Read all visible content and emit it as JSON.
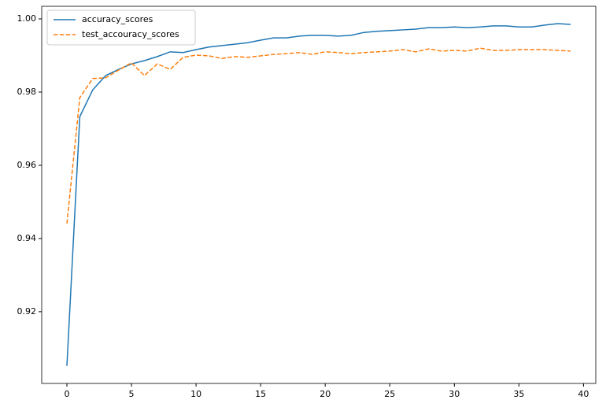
{
  "chart_data": {
    "type": "line",
    "x": [
      0,
      1,
      2,
      3,
      4,
      5,
      6,
      7,
      8,
      9,
      10,
      11,
      12,
      13,
      14,
      15,
      16,
      17,
      18,
      19,
      20,
      21,
      22,
      23,
      24,
      25,
      26,
      27,
      28,
      29,
      30,
      31,
      32,
      33,
      34,
      35,
      36,
      37,
      38,
      39
    ],
    "series": [
      {
        "name": "accuracy_scores",
        "color": "#1f77b4",
        "linestyle": "solid",
        "values": [
          0.9052,
          0.9733,
          0.9806,
          0.9845,
          0.9862,
          0.9877,
          0.9886,
          0.9897,
          0.991,
          0.9908,
          0.9916,
          0.9923,
          0.9927,
          0.9931,
          0.9935,
          0.9942,
          0.9948,
          0.9948,
          0.9953,
          0.9955,
          0.9955,
          0.9953,
          0.9955,
          0.9963,
          0.9966,
          0.9968,
          0.997,
          0.9972,
          0.9976,
          0.9976,
          0.9978,
          0.9976,
          0.9978,
          0.9981,
          0.9981,
          0.9978,
          0.9978,
          0.9983,
          0.9987,
          0.9985
        ]
      },
      {
        "name": "test_accouracy_scores",
        "color": "#ff7f0e",
        "linestyle": "dashed",
        "values": [
          0.9441,
          0.9785,
          0.9837,
          0.9839,
          0.986,
          0.988,
          0.9845,
          0.9877,
          0.9862,
          0.9895,
          0.9901,
          0.9899,
          0.9892,
          0.9897,
          0.9895,
          0.9899,
          0.9903,
          0.9905,
          0.9908,
          0.9903,
          0.991,
          0.9908,
          0.9905,
          0.9908,
          0.991,
          0.9912,
          0.9916,
          0.991,
          0.9918,
          0.9912,
          0.9914,
          0.9912,
          0.992,
          0.9914,
          0.9914,
          0.9916,
          0.9916,
          0.9916,
          0.9914,
          0.9912
        ]
      }
    ],
    "xlim": [
      -1.95,
      40.95
    ],
    "xticks": [
      0,
      5,
      10,
      15,
      20,
      25,
      30,
      35,
      40
    ],
    "ylim": [
      0.9004,
      1.00344
    ],
    "yticks": [
      0.92,
      0.94,
      0.96,
      0.98,
      {
        "value": 1,
        "label": "1.00"
      }
    ],
    "grid": false,
    "legend": "upper left"
  }
}
